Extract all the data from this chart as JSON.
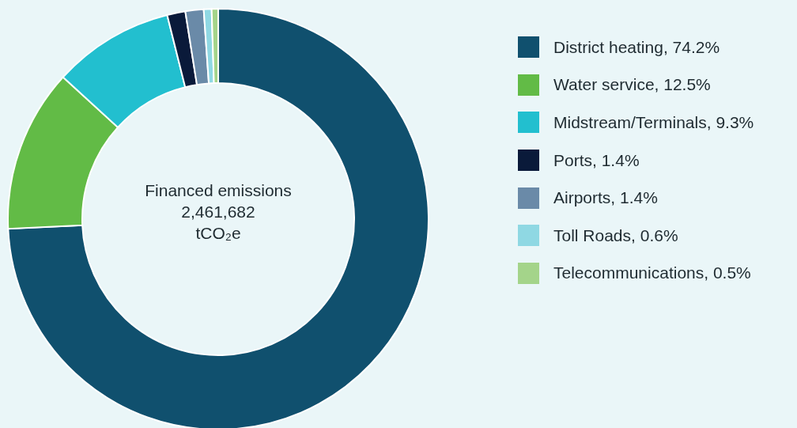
{
  "chart_data": {
    "type": "donut",
    "categories": [
      "District heating, 74.2%",
      "Water service, 12.5%",
      "Midstream/Terminals, 9.3%",
      "Ports, 1.4%",
      "Airports, 1.4%",
      "Toll Roads, 0.6%",
      "Telecommunications, 0.5%"
    ],
    "values": [
      74.2,
      12.5,
      9.3,
      1.4,
      1.4,
      0.6,
      0.5
    ],
    "colors": [
      "#10506e",
      "#62bb46",
      "#22bfcf",
      "#0a1a3a",
      "#6a8aa8",
      "#8fd8e3",
      "#a4d48a"
    ],
    "annotations": [
      "Financed emissions",
      "2,461,682",
      "tCO₂e"
    ],
    "legend": "right"
  }
}
